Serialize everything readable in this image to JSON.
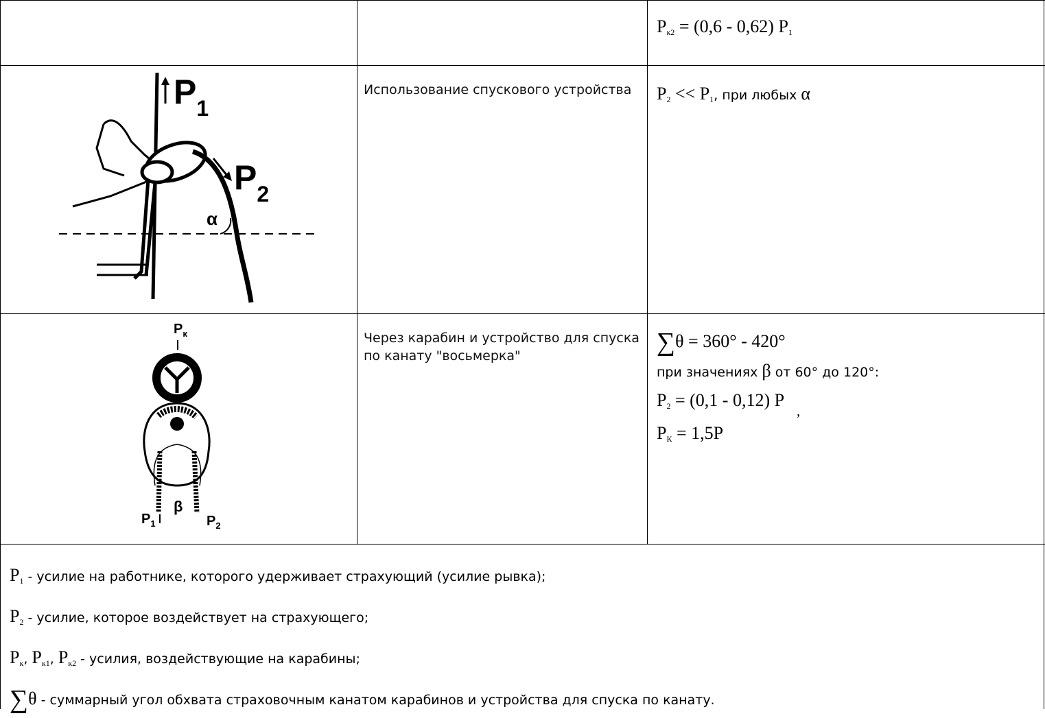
{
  "rows": [
    {
      "formula_lines": [
        [
          {
            "base": "P",
            "sub": "к2"
          },
          {
            "text": " = (0,6 - 0,62) "
          },
          {
            "base": "P",
            "sub": "1"
          }
        ]
      ]
    },
    {
      "figure": {
        "p1": {
          "base": "P",
          "sub": "1"
        },
        "p2": {
          "base": "P",
          "sub": "2"
        },
        "angle": "α"
      },
      "description": "Использование спускового устройства",
      "formula_lines": [
        [
          {
            "base": "P",
            "sub": "2"
          },
          {
            "text": " << "
          },
          {
            "base": "P",
            "sub": "1"
          },
          {
            "note": ", при любых "
          },
          {
            "text": "α"
          }
        ]
      ]
    },
    {
      "figure": {
        "pk": {
          "base": "P",
          "sub": "к"
        },
        "angle": "β",
        "p1": {
          "base": "P",
          "sub": "1"
        },
        "p2": {
          "base": "P",
          "sub": "2"
        }
      },
      "description": "Через карабин и устройство для спуска по канату \"восьмерка\"",
      "formula_lines": [
        [
          {
            "sum": "∑"
          },
          {
            "text": "θ = 360° - 420°"
          }
        ],
        [
          {
            "note": "при значениях "
          },
          {
            "text": "β"
          },
          {
            "note": " от 60° до 120°:"
          }
        ],
        [
          {
            "base": "P",
            "sub": "2"
          },
          {
            "text": " = (0,1 - 0,12) P"
          },
          {
            "low": ","
          }
        ],
        [
          {
            "base": "P",
            "sub": "К"
          },
          {
            "text": " = 1,5P"
          }
        ]
      ]
    }
  ],
  "legend": [
    [
      {
        "base": "P",
        "sub": "1"
      },
      {
        "note": " - усилие на работнике, которого удерживает страхующий (усилие рывка);"
      }
    ],
    [
      {
        "base": "P",
        "sub": "2"
      },
      {
        "note": " - усилие, которое воздействует на страхующего;"
      }
    ],
    [
      {
        "base": "P",
        "sub": "к"
      },
      {
        "note": ", "
      },
      {
        "base": "P",
        "sub": "к1"
      },
      {
        "note": ", "
      },
      {
        "base": "P",
        "sub": "к2"
      },
      {
        "note": " - усилия, воздействующие на карабины;"
      }
    ],
    [
      {
        "sum": "∑"
      },
      {
        "text": "θ"
      },
      {
        "note": " - суммарный угол обхвата страховочным канатом карабинов и устройства для спуска по канату."
      }
    ]
  ]
}
